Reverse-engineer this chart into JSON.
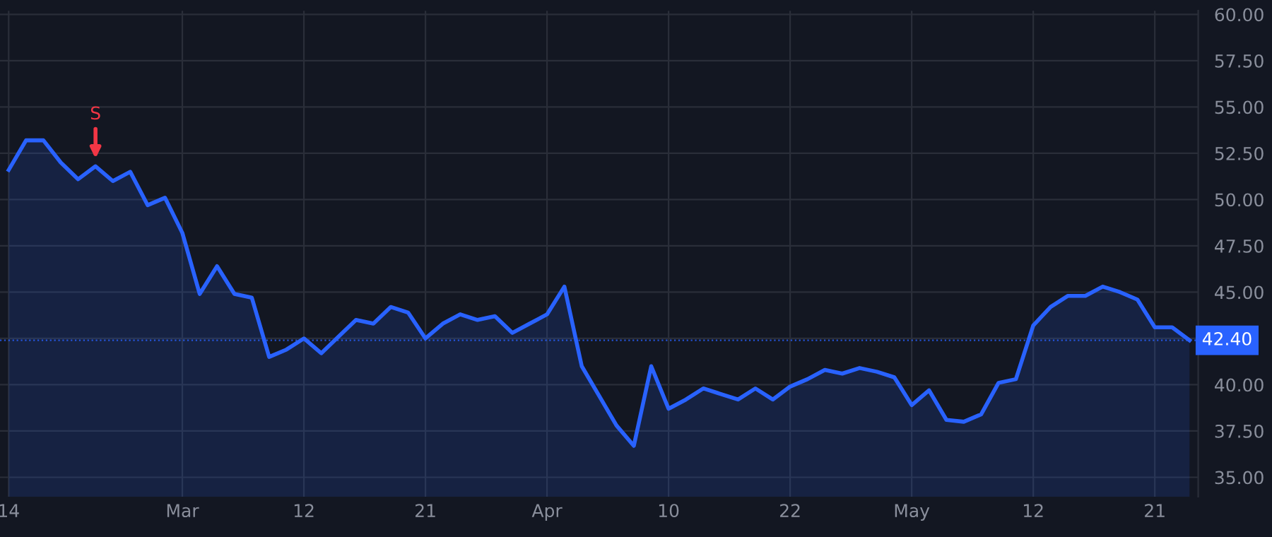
{
  "chart_data": {
    "type": "area",
    "categories": [
      "14",
      null,
      null,
      null,
      null,
      null,
      null,
      null,
      null,
      null,
      "Mar",
      null,
      null,
      null,
      null,
      null,
      null,
      "12",
      null,
      null,
      null,
      null,
      null,
      null,
      "21",
      null,
      null,
      null,
      null,
      null,
      null,
      "Apr",
      null,
      null,
      null,
      null,
      null,
      null,
      "10",
      null,
      null,
      null,
      null,
      null,
      null,
      "22",
      null,
      null,
      null,
      null,
      null,
      null,
      "May",
      null,
      null,
      null,
      null,
      null,
      null,
      "12",
      null,
      null,
      null,
      null,
      null,
      null,
      "21",
      null,
      null
    ],
    "series": [
      {
        "color": "#2962ff",
        "values": [
          51.6,
          53.2,
          53.2,
          52.0,
          51.1,
          51.8,
          51.0,
          51.5,
          49.7,
          50.1,
          48.2,
          44.9,
          46.4,
          44.9,
          44.7,
          41.5,
          41.9,
          42.5,
          41.7,
          42.6,
          43.5,
          43.3,
          44.2,
          43.9,
          42.5,
          43.3,
          43.8,
          43.5,
          43.7,
          42.8,
          43.3,
          43.8,
          45.3,
          41.0,
          39.4,
          37.8,
          36.7,
          41.0,
          38.7,
          39.2,
          39.8,
          39.5,
          39.2,
          39.8,
          39.2,
          39.9,
          40.3,
          40.8,
          40.6,
          40.9,
          40.7,
          40.4,
          38.9,
          39.7,
          38.1,
          38.0,
          38.4,
          40.1,
          40.3,
          43.2,
          44.2,
          44.8,
          44.8,
          45.3,
          45.0,
          44.6,
          43.1,
          43.1,
          42.4
        ]
      }
    ],
    "ylim": [
      33.95,
      60.2
    ],
    "yticks": [
      {
        "value": 35,
        "label": "35.00"
      },
      {
        "value": 37.5,
        "label": "37.50"
      },
      {
        "value": 40,
        "label": "40.00"
      },
      {
        "value": 42.5,
        "label": null
      },
      {
        "value": 45,
        "label": "45.00"
      },
      {
        "value": 47.5,
        "label": "47.50"
      },
      {
        "value": 50,
        "label": "50.00"
      },
      {
        "value": 52.5,
        "label": "52.50"
      },
      {
        "value": 55,
        "label": "55.00"
      },
      {
        "value": 57.5,
        "label": "57.50"
      },
      {
        "value": 60,
        "label": "60.00"
      }
    ],
    "ref_lines": [
      {
        "axis": "y",
        "value": 42.4,
        "label": "42.40",
        "color": "#2962ff",
        "line_style": "dotted"
      }
    ],
    "annotations": [
      {
        "text": "S",
        "y": 51.8
      }
    ],
    "grid": true,
    "legend": false
  }
}
